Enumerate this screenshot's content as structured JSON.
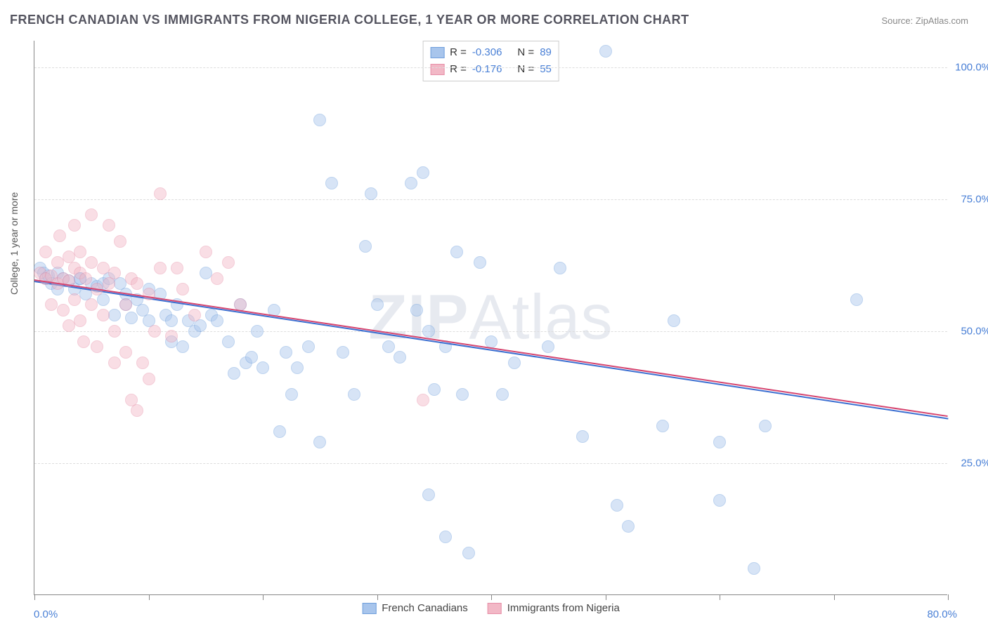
{
  "title": "FRENCH CANADIAN VS IMMIGRANTS FROM NIGERIA COLLEGE, 1 YEAR OR MORE CORRELATION CHART",
  "source": "Source: ZipAtlas.com",
  "watermark_bold": "ZIP",
  "watermark_rest": "Atlas",
  "chart": {
    "type": "scatter",
    "ylabel": "College, 1 year or more",
    "xlim": [
      0,
      80
    ],
    "ylim": [
      0,
      105
    ],
    "xticks_at": [
      0,
      10,
      20,
      30,
      40,
      50,
      60,
      70,
      80
    ],
    "xmin_label": "0.0%",
    "xmax_label": "80.0%",
    "ygrid": [
      {
        "v": 25,
        "label": "25.0%"
      },
      {
        "v": 50,
        "label": "50.0%"
      },
      {
        "v": 75,
        "label": "75.0%"
      },
      {
        "v": 100,
        "label": "100.0%"
      }
    ],
    "background_color": "#ffffff",
    "grid_color": "#dddddd",
    "axis_color": "#888888",
    "tick_label_color": "#4a80d6",
    "marker_radius": 9,
    "marker_opacity": 0.45,
    "series": [
      {
        "name": "French Canadians",
        "fill": "#a8c5ec",
        "stroke": "#6f9fdc",
        "trend_color": "#3b6fd1",
        "R": "-0.306",
        "N": "89",
        "trend": {
          "x1": 0,
          "y1": 59.5,
          "x2": 80,
          "y2": 33.5
        },
        "points": [
          [
            0.5,
            62
          ],
          [
            0.8,
            61
          ],
          [
            1,
            60
          ],
          [
            1.2,
            60.5
          ],
          [
            1.5,
            59
          ],
          [
            2,
            61
          ],
          [
            2,
            58
          ],
          [
            2.5,
            60
          ],
          [
            3,
            59.5
          ],
          [
            3.5,
            58
          ],
          [
            4,
            60
          ],
          [
            4,
            60
          ],
          [
            4.5,
            57
          ],
          [
            5,
            59
          ],
          [
            5.5,
            58.5
          ],
          [
            6,
            59
          ],
          [
            6,
            56
          ],
          [
            6.5,
            60
          ],
          [
            7,
            53
          ],
          [
            7.5,
            59
          ],
          [
            8,
            55
          ],
          [
            8,
            57
          ],
          [
            8.5,
            52.5
          ],
          [
            9,
            56
          ],
          [
            9.5,
            54
          ],
          [
            10,
            58
          ],
          [
            10,
            52
          ],
          [
            11,
            57
          ],
          [
            11.5,
            53
          ],
          [
            12,
            52
          ],
          [
            12,
            48
          ],
          [
            12.5,
            55
          ],
          [
            13,
            47
          ],
          [
            13.5,
            52
          ],
          [
            14,
            50
          ],
          [
            14.5,
            51
          ],
          [
            15,
            61
          ],
          [
            15.5,
            53
          ],
          [
            16,
            52
          ],
          [
            17,
            48
          ],
          [
            17.5,
            42
          ],
          [
            18,
            55
          ],
          [
            18.5,
            44
          ],
          [
            19,
            45
          ],
          [
            19.5,
            50
          ],
          [
            20,
            43
          ],
          [
            21,
            54
          ],
          [
            21.5,
            31
          ],
          [
            22,
            46
          ],
          [
            22.5,
            38
          ],
          [
            23,
            43
          ],
          [
            24,
            47
          ],
          [
            25,
            90
          ],
          [
            25,
            29
          ],
          [
            26,
            78
          ],
          [
            27,
            46
          ],
          [
            28,
            38
          ],
          [
            29,
            66
          ],
          [
            29.5,
            76
          ],
          [
            30,
            55
          ],
          [
            31,
            47
          ],
          [
            32,
            45
          ],
          [
            33,
            78
          ],
          [
            33.5,
            54
          ],
          [
            34,
            80
          ],
          [
            34.5,
            50
          ],
          [
            34.5,
            19
          ],
          [
            35,
            39
          ],
          [
            36,
            11
          ],
          [
            36,
            47
          ],
          [
            37,
            65
          ],
          [
            37.5,
            38
          ],
          [
            38,
            8
          ],
          [
            39,
            63
          ],
          [
            40,
            48
          ],
          [
            41,
            38
          ],
          [
            42,
            44
          ],
          [
            45,
            47
          ],
          [
            46,
            62
          ],
          [
            48,
            30
          ],
          [
            50,
            103
          ],
          [
            51,
            17
          ],
          [
            52,
            13
          ],
          [
            55,
            32
          ],
          [
            56,
            52
          ],
          [
            60,
            29
          ],
          [
            60,
            18
          ],
          [
            63,
            5
          ],
          [
            64,
            32
          ],
          [
            72,
            56
          ]
        ]
      },
      {
        "name": "Immigrants from Nigeria",
        "fill": "#f2b8c6",
        "stroke": "#e78fa8",
        "trend_color": "#d6456f",
        "R": "-0.176",
        "N": "55",
        "trend": {
          "x1": 0,
          "y1": 59.8,
          "x2": 80,
          "y2": 34
        },
        "points": [
          [
            0.5,
            61
          ],
          [
            1,
            60
          ],
          [
            1,
            65
          ],
          [
            1.5,
            60.5
          ],
          [
            1.5,
            55
          ],
          [
            2,
            63
          ],
          [
            2,
            59
          ],
          [
            2.2,
            68
          ],
          [
            2.5,
            60
          ],
          [
            2.5,
            54
          ],
          [
            3,
            64
          ],
          [
            3,
            59.5
          ],
          [
            3,
            51
          ],
          [
            3.5,
            62
          ],
          [
            3.5,
            56
          ],
          [
            3.5,
            70
          ],
          [
            4,
            61
          ],
          [
            4,
            52
          ],
          [
            4,
            65
          ],
          [
            4.3,
            48
          ],
          [
            4.5,
            60
          ],
          [
            5,
            63
          ],
          [
            5,
            55
          ],
          [
            5,
            72
          ],
          [
            5.5,
            58
          ],
          [
            5.5,
            47
          ],
          [
            6,
            62
          ],
          [
            6,
            53
          ],
          [
            6.5,
            70
          ],
          [
            6.5,
            59
          ],
          [
            7,
            44
          ],
          [
            7,
            61
          ],
          [
            7,
            50
          ],
          [
            7.5,
            67
          ],
          [
            8,
            55
          ],
          [
            8,
            46
          ],
          [
            8.5,
            60
          ],
          [
            8.5,
            37
          ],
          [
            9,
            59
          ],
          [
            9,
            35
          ],
          [
            9.5,
            44
          ],
          [
            10,
            57
          ],
          [
            10,
            41
          ],
          [
            10.5,
            50
          ],
          [
            11,
            76
          ],
          [
            11,
            62
          ],
          [
            12,
            49
          ],
          [
            12.5,
            62
          ],
          [
            13,
            58
          ],
          [
            14,
            53
          ],
          [
            15,
            65
          ],
          [
            16,
            60
          ],
          [
            17,
            63
          ],
          [
            18,
            55
          ],
          [
            34,
            37
          ]
        ]
      }
    ]
  },
  "legend_bottom": [
    {
      "label": "French Canadians",
      "fill": "#a8c5ec",
      "stroke": "#6f9fdc"
    },
    {
      "label": "Immigrants from Nigeria",
      "fill": "#f2b8c6",
      "stroke": "#e78fa8"
    }
  ]
}
